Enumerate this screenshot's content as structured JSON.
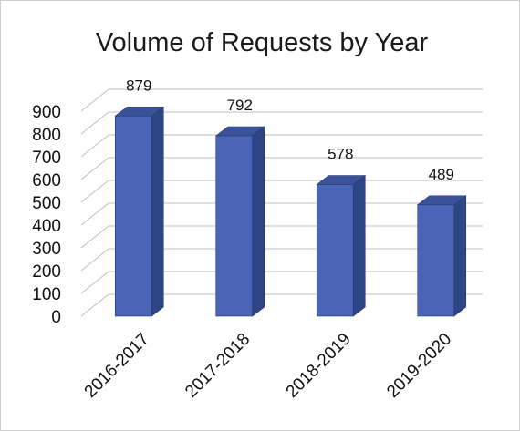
{
  "chart_data": {
    "type": "bar",
    "title": "Volume of Requests by Year",
    "categories": [
      "2016-2017",
      "2017-2018",
      "2018-2019",
      "2019-2020"
    ],
    "values": [
      879,
      792,
      578,
      489
    ],
    "data_labels": [
      "879",
      "792",
      "578",
      "489"
    ],
    "ylim": [
      0,
      900
    ],
    "yticks": [
      0,
      100,
      200,
      300,
      400,
      500,
      600,
      700,
      800,
      900
    ],
    "xlabel": "",
    "ylabel": "",
    "grid": true,
    "legend": "none",
    "style": "3d-column",
    "colors": {
      "bar_front": "#4a65b5",
      "bar_side": "#2e4585",
      "bar_top": "#3a5299",
      "bar_edge": "#27396e",
      "grid": "#bfbfbf"
    }
  }
}
